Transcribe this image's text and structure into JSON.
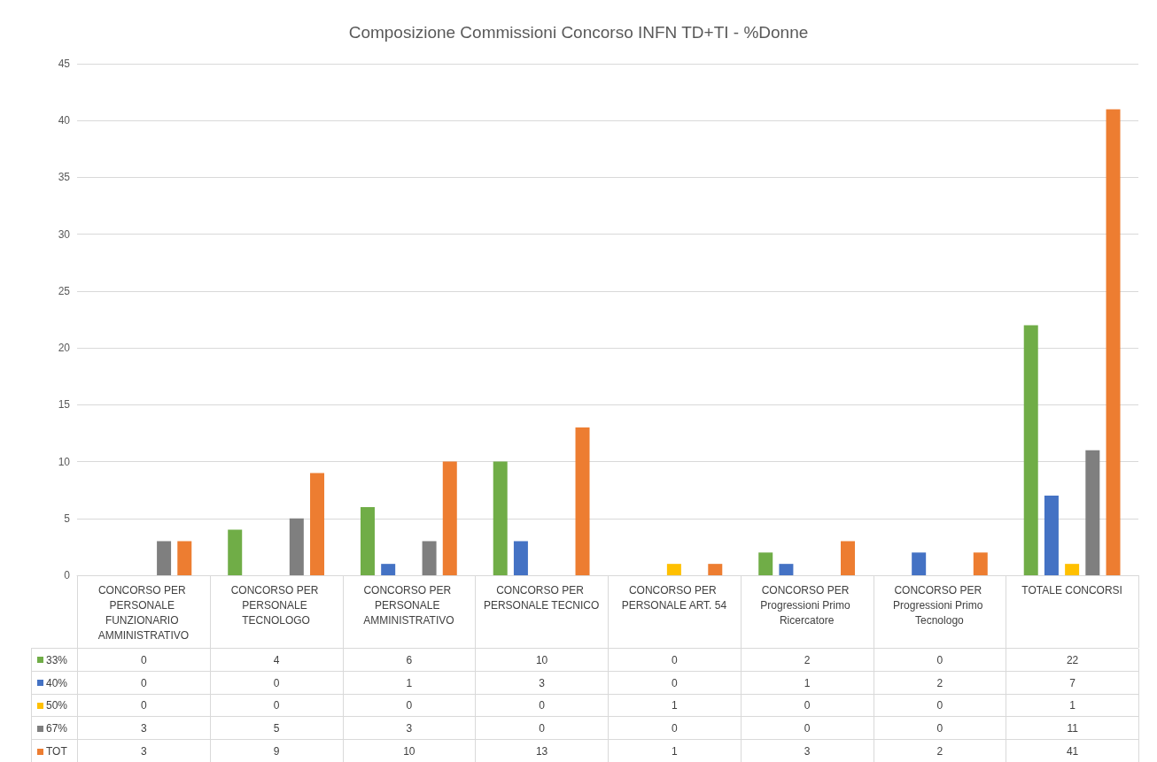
{
  "chart_data": {
    "type": "bar",
    "title": "Composizione Commissioni Concorso INFN TD+TI - %Donne",
    "categories": [
      "CONCORSO PER PERSONALE FUNZIONARIO AMMINISTRATIVO",
      "CONCORSO PER PERSONALE TECNOLOGO",
      "CONCORSO PER PERSONALE AMMINISTRATIVO",
      "CONCORSO PER PERSONALE TECNICO",
      "CONCORSO PER PERSONALE ART. 54",
      "CONCORSO PER Progressioni Primo Ricercatore",
      "CONCORSO PER Progressioni Primo Tecnologo",
      "TOTALE CONCORSI"
    ],
    "series": [
      {
        "name": "33%",
        "color": "#70ad47",
        "values": [
          0,
          4,
          6,
          10,
          0,
          2,
          0,
          22
        ]
      },
      {
        "name": "40%",
        "color": "#4472c4",
        "values": [
          0,
          0,
          1,
          3,
          0,
          1,
          2,
          7
        ]
      },
      {
        "name": "50%",
        "color": "#ffc000",
        "values": [
          0,
          0,
          0,
          0,
          1,
          0,
          0,
          1
        ]
      },
      {
        "name": "67%",
        "color": "#7f7f7f",
        "values": [
          3,
          5,
          3,
          0,
          0,
          0,
          0,
          11
        ]
      },
      {
        "name": "TOT",
        "color": "#ed7d31",
        "values": [
          3,
          9,
          10,
          13,
          1,
          3,
          2,
          41
        ]
      }
    ],
    "ylim": [
      0,
      45
    ],
    "yticks": [
      0,
      5,
      10,
      15,
      20,
      25,
      30,
      35,
      40,
      45
    ],
    "grid": "y",
    "data_labels": true,
    "legend": "bottom left"
  }
}
